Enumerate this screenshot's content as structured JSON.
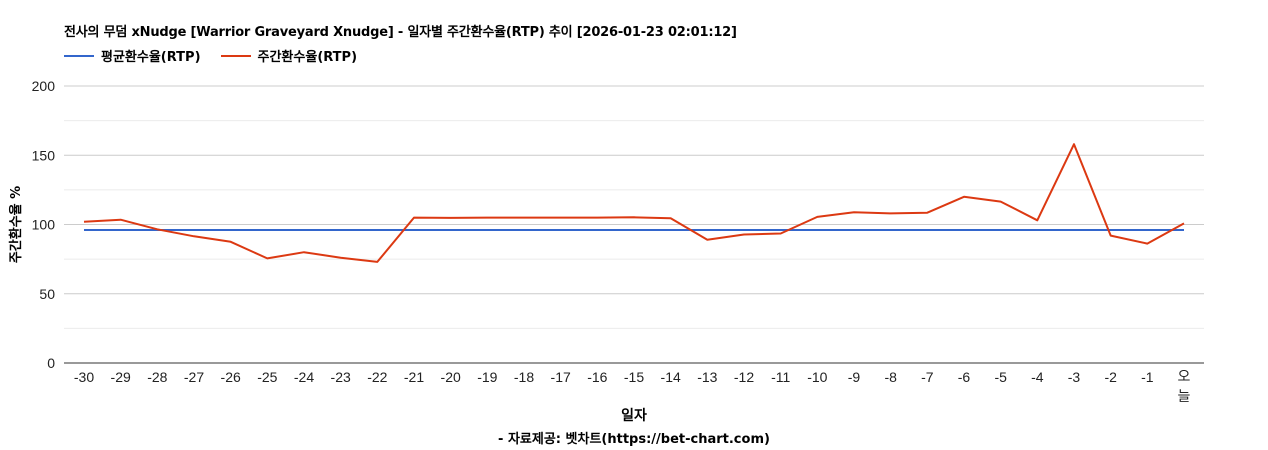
{
  "chart": {
    "title": "전사의 무덤 xNudge [Warrior Graveyard Xnudge] - 일자별 주간환수율(RTP) 추이 [2026-01-23 02:01:12]",
    "legend": [
      {
        "label": "평균환수율(RTP)",
        "color": "#3366cc"
      },
      {
        "label": "주간환수율(RTP)",
        "color": "#dc3912"
      }
    ],
    "xlabel": "일자",
    "ylabel": "주간환수율 %",
    "source": "- 자료제공: 벳차트(https://bet-chart.com)"
  },
  "chart_data": {
    "type": "line",
    "title": "전사의 무덤 xNudge [Warrior Graveyard Xnudge] - 일자별 주간환수율(RTP) 추이 [2026-01-23 02:01:12]",
    "xlabel": "일자",
    "ylabel": "주간환수율 %",
    "ylim": [
      0,
      200
    ],
    "yticks": [
      0,
      50,
      100,
      150,
      200
    ],
    "grid": true,
    "legend_position": "top",
    "categories": [
      "-30",
      "-29",
      "-28",
      "-27",
      "-26",
      "-25",
      "-24",
      "-23",
      "-22",
      "-21",
      "-20",
      "-19",
      "-18",
      "-17",
      "-16",
      "-15",
      "-14",
      "-13",
      "-12",
      "-11",
      "-10",
      "-9",
      "-8",
      "-7",
      "-6",
      "-5",
      "-4",
      "-3",
      "-2",
      "-1",
      "오늘"
    ],
    "series": [
      {
        "name": "평균환수율(RTP)",
        "color": "#3366cc",
        "values": [
          96,
          96,
          96,
          96,
          96,
          96,
          96,
          96,
          96,
          96,
          96,
          96,
          96,
          96,
          96,
          96,
          96,
          96,
          96,
          96,
          96,
          96,
          96,
          96,
          96,
          96,
          96,
          96,
          96,
          96,
          96
        ]
      },
      {
        "name": "주간환수율(RTP)",
        "color": "#dc3912",
        "values": [
          102,
          103.5,
          96.5,
          91.5,
          87.5,
          75.5,
          80,
          76,
          73,
          105,
          104.8,
          105,
          105,
          105,
          105,
          105.2,
          104.5,
          89,
          92.8,
          93.5,
          105.5,
          108.8,
          108,
          108.5,
          120,
          116.5,
          103,
          158,
          92,
          86.2,
          100.8
        ]
      }
    ]
  }
}
